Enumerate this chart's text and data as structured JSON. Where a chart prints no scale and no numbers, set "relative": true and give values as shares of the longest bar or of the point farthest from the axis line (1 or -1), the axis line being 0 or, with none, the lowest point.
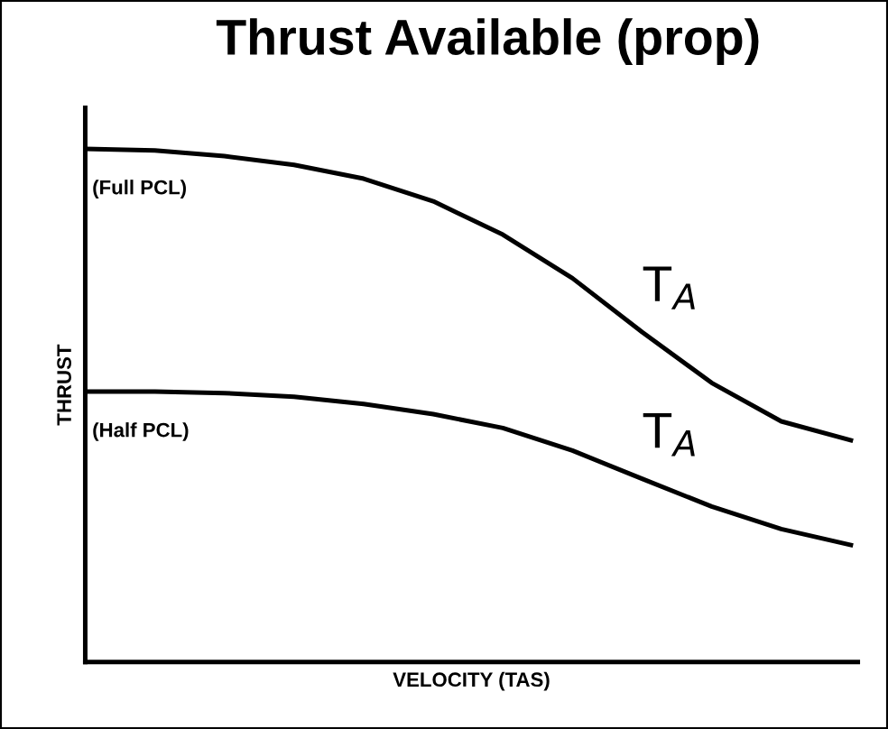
{
  "chart_data": {
    "type": "line",
    "title": "Thrust Available (prop)",
    "xlabel": "VELOCITY (TAS)",
    "ylabel": "THRUST",
    "relative": true,
    "categories": [
      null,
      null,
      null,
      null,
      null,
      null,
      null,
      null,
      null,
      null,
      null,
      null
    ],
    "series": [
      {
        "name": "T$_{A}$",
        "color": "#000000",
        "values": [
          1,
          0.997,
          0.986,
          0.969,
          0.942,
          0.898,
          0.833,
          0.748,
          0.643,
          0.544,
          0.469,
          0.432
        ]
      },
      {
        "name": "T$_{A}$",
        "color": "#000000",
        "values": [
          0.527,
          0.527,
          0.524,
          0.517,
          0.503,
          0.483,
          0.456,
          0.412,
          0.357,
          0.303,
          0.259,
          0.228
        ]
      }
    ],
    "annotations": [
      "(Full PCL)",
      "(Half PCL)"
    ],
    "legend": false,
    "marker": "none",
    "line_style": "solid"
  }
}
